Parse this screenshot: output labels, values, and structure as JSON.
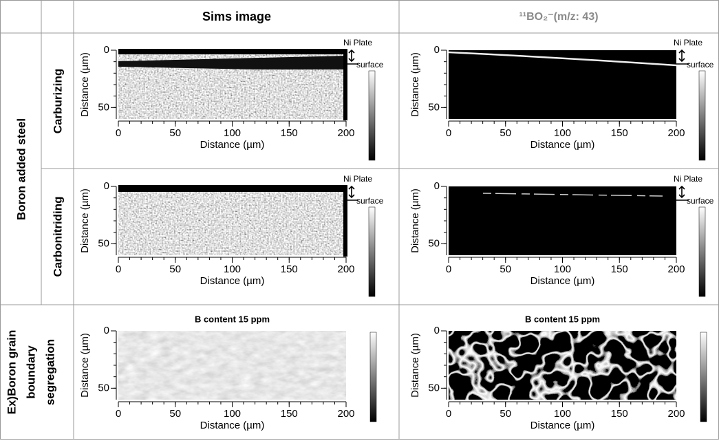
{
  "header": {
    "columns": [
      "Sims image",
      "¹¹BO₂⁻(m/z: 43)"
    ]
  },
  "row_group": "Boron added steel",
  "rows": [
    {
      "label": "Carburizing"
    },
    {
      "label": "Carbonitriding"
    },
    {
      "label_lines": [
        "Ex)Boron grain",
        "boundary",
        "segregation"
      ],
      "panel_title": "B content 15 ppm"
    }
  ],
  "annotations": {
    "ni_plate": "Ni Plate",
    "surface": "surface"
  },
  "axes": {
    "x_label": "Distance (µm)",
    "y_label": "Distance (µm)",
    "xlim": [
      0,
      200
    ],
    "ylim": [
      0,
      60
    ],
    "xticks": [
      0,
      50,
      100,
      150,
      200
    ],
    "yticks": [
      0,
      50
    ]
  }
}
